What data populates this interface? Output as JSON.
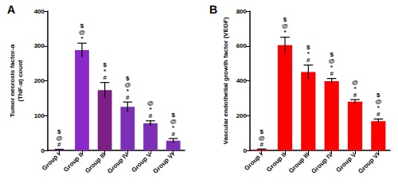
{
  "chart_data": [
    {
      "type": "bar",
      "title": "A",
      "y_label": "Tumor necrosis factor-α\n(TNF-α) count",
      "categories": [
        "Group I",
        "Group II",
        "Group III",
        "Group IV",
        "Group V",
        "Group VI"
      ],
      "values": [
        2,
        288,
        173,
        125,
        78,
        28
      ],
      "errors": [
        1,
        20,
        22,
        14,
        7,
        6
      ],
      "annotations": [
        [
          "$",
          "@",
          "#"
        ],
        [
          "$",
          "@",
          "*"
        ],
        [
          "$",
          "*",
          "#"
        ],
        [
          "$",
          "@",
          "*",
          "#"
        ],
        [
          "@",
          "*",
          "#"
        ],
        [
          "$",
          "@",
          "*",
          "#"
        ]
      ],
      "colors": [
        "#7b2fb5",
        "#8a28c8",
        "#7e1f86",
        "#7b2fb5",
        "#7b2fb5",
        "#7b2fb5"
      ],
      "ylim": [
        0,
        400
      ],
      "yticks": [
        0,
        100,
        200,
        300,
        400
      ],
      "grid": false
    },
    {
      "type": "bar",
      "title": "B",
      "y_label": "Vascular endothelial growth factor (VEGF)",
      "categories": [
        "Group I",
        "Group II",
        "Group III",
        "Group IV",
        "Group V",
        "Group VI"
      ],
      "values": [
        5,
        605,
        450,
        398,
        280,
        168
      ],
      "errors": [
        3,
        45,
        40,
        15,
        12,
        12
      ],
      "annotations": [
        [
          "$",
          "@",
          "#"
        ],
        [
          "$",
          "@",
          "*"
        ],
        [
          "$",
          "*",
          "#"
        ],
        [
          "$",
          "@",
          "*",
          "#"
        ],
        [
          "@",
          "*",
          "#"
        ],
        [
          "$",
          "@",
          "*",
          "#"
        ]
      ],
      "color": "#ff0000",
      "ylim": [
        0,
        800
      ],
      "yticks": [
        0,
        200,
        400,
        600,
        800
      ],
      "grid": false
    }
  ]
}
